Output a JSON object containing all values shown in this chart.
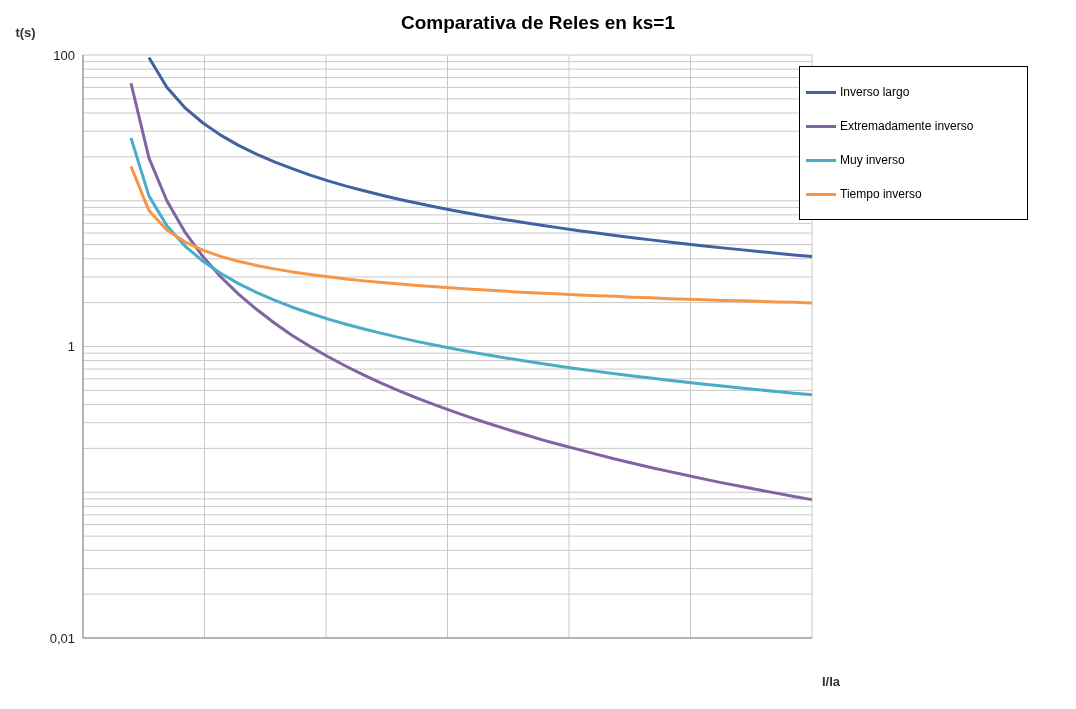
{
  "chart_data": {
    "type": "line",
    "title": "Comparativa de Reles en ks=1",
    "xlabel": "I/Ia",
    "ylabel": "t(s)",
    "categories": [
      null,
      null,
      null,
      null,
      null,
      null,
      null,
      null,
      null,
      null,
      null,
      null,
      null,
      null,
      null,
      null,
      null,
      null,
      null,
      null,
      null,
      null,
      null,
      null,
      null,
      null,
      null,
      null,
      null,
      null,
      null,
      null,
      null,
      null,
      null,
      null,
      null,
      null,
      null
    ],
    "series": [
      {
        "name": "Inverso largo",
        "color": "#4062a0",
        "values": [
          null,
          96,
          60,
          43.6,
          34.3,
          28.2,
          24,
          20.9,
          18.5,
          16.6,
          15,
          13.7,
          12.6,
          11.7,
          10.9,
          10.2,
          9.6,
          9.06,
          8.57,
          8.14,
          7.74,
          7.38,
          7.06,
          6.76,
          6.49,
          6.23,
          6.0,
          5.78,
          5.58,
          5.39,
          5.22,
          5.05,
          4.9,
          4.75,
          4.62,
          4.49,
          4.36,
          4.25,
          4.14
        ]
      },
      {
        "name": "Extremadamente inverso",
        "color": "#8064a2",
        "values": [
          64,
          19.7,
          10,
          6.12,
          4.16,
          3.01,
          2.29,
          1.8,
          1.45,
          1.19,
          1.0,
          0.851,
          0.732,
          0.637,
          0.559,
          0.495,
          0.441,
          0.396,
          0.357,
          0.324,
          0.295,
          0.27,
          0.248,
          0.228,
          0.211,
          0.196,
          0.182,
          0.169,
          0.158,
          0.148,
          0.139,
          0.131,
          0.123,
          0.116,
          0.11,
          0.104,
          0.0986,
          0.0936,
          0.089
        ]
      },
      {
        "name": "Muy inverso",
        "color": "#4bacc6",
        "values": [
          27,
          10.8,
          6.75,
          4.91,
          3.86,
          3.18,
          2.7,
          2.35,
          2.08,
          1.86,
          1.69,
          1.54,
          1.42,
          1.32,
          1.23,
          1.15,
          1.08,
          1.02,
          0.964,
          0.915,
          0.871,
          0.831,
          0.794,
          0.761,
          0.73,
          0.701,
          0.675,
          0.651,
          0.628,
          0.607,
          0.587,
          0.568,
          0.551,
          0.535,
          0.519,
          0.505,
          0.491,
          0.478,
          0.466
        ]
      },
      {
        "name": "Tiempo inverso",
        "color": "#f79646",
        "values": [
          17.2,
          8.56,
          6.3,
          5.23,
          4.59,
          4.15,
          3.84,
          3.6,
          3.41,
          3.25,
          3.12,
          3.01,
          2.91,
          2.82,
          2.75,
          2.68,
          2.62,
          2.57,
          2.52,
          2.47,
          2.43,
          2.39,
          2.35,
          2.32,
          2.29,
          2.26,
          2.23,
          2.21,
          2.18,
          2.16,
          2.13,
          2.11,
          2.09,
          2.07,
          2.06,
          2.04,
          2.02,
          2.01,
          1.99
        ]
      }
    ],
    "ylim": [
      0.01,
      100
    ],
    "yticks": [
      {
        "value": 0.01,
        "label": "0,01"
      },
      {
        "value": 0.02,
        "label": null
      },
      {
        "value": 0.03,
        "label": null
      },
      {
        "value": 0.04,
        "label": null
      },
      {
        "value": 0.05,
        "label": null
      },
      {
        "value": 0.06,
        "label": null
      },
      {
        "value": 0.07,
        "label": null
      },
      {
        "value": 0.08,
        "label": null
      },
      {
        "value": 0.09,
        "label": null
      },
      {
        "value": 0.1,
        "label": null
      },
      {
        "value": 0.2,
        "label": null
      },
      {
        "value": 0.3,
        "label": null
      },
      {
        "value": 0.4,
        "label": null
      },
      {
        "value": 0.5,
        "label": null
      },
      {
        "value": 0.6,
        "label": null
      },
      {
        "value": 0.7,
        "label": null
      },
      {
        "value": 0.8,
        "label": null
      },
      {
        "value": 0.9,
        "label": null
      },
      {
        "value": 1,
        "label": "1"
      },
      {
        "value": 2,
        "label": null
      },
      {
        "value": 3,
        "label": null
      },
      {
        "value": 4,
        "label": null
      },
      {
        "value": 5,
        "label": null
      },
      {
        "value": 6,
        "label": null
      },
      {
        "value": 7,
        "label": null
      },
      {
        "value": 8,
        "label": null
      },
      {
        "value": 9,
        "label": null
      },
      {
        "value": 10,
        "label": null
      },
      {
        "value": 20,
        "label": null
      },
      {
        "value": 30,
        "label": null
      },
      {
        "value": 40,
        "label": null
      },
      {
        "value": 50,
        "label": null
      },
      {
        "value": 60,
        "label": null
      },
      {
        "value": 70,
        "label": null
      },
      {
        "value": 80,
        "label": null
      },
      {
        "value": 90,
        "label": null
      },
      {
        "value": 100,
        "label": "100"
      }
    ],
    "log": "y",
    "grid": true,
    "legend": "top right",
    "marker": "none",
    "line_style": "solid"
  }
}
